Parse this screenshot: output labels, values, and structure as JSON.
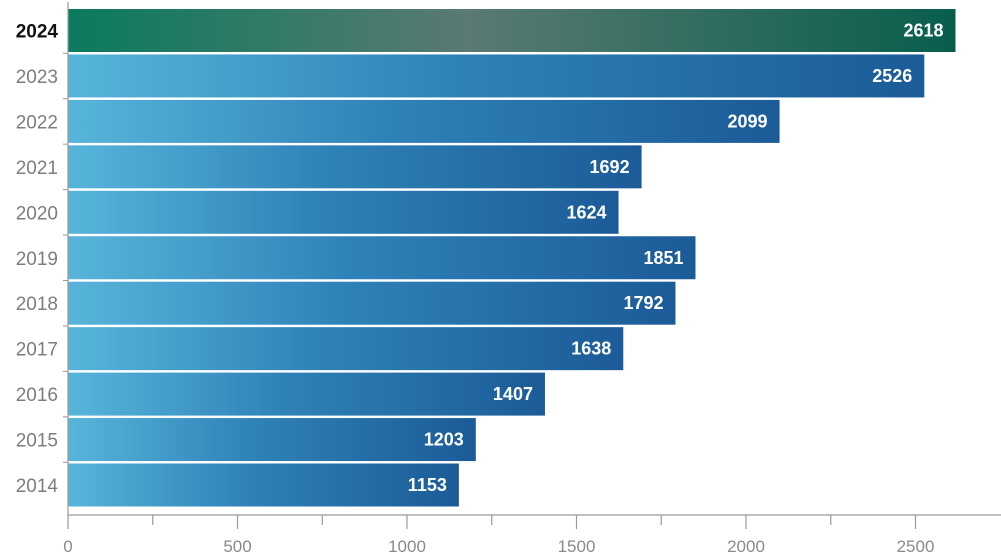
{
  "chart_data": {
    "type": "bar",
    "orientation": "horizontal",
    "categories": [
      "2024",
      "2023",
      "2022",
      "2021",
      "2020",
      "2019",
      "2018",
      "2017",
      "2016",
      "2015",
      "2014"
    ],
    "values": [
      2618,
      2526,
      2099,
      1692,
      1624,
      1851,
      1792,
      1638,
      1407,
      1203,
      1153
    ],
    "highlight_category": "2024",
    "xlim": [
      0,
      2750
    ],
    "x_ticks": [
      0,
      500,
      1000,
      1500,
      2000,
      2500
    ],
    "x_tick_labels": [
      "0",
      "500",
      "1000",
      "1500",
      "2000",
      "2500"
    ],
    "minor_tick_step": 250,
    "grid": false,
    "title": "",
    "xlabel": "",
    "ylabel": "",
    "colors": {
      "bar_gradient_start": "#57b5da",
      "bar_gradient_mid": "#2f82b8",
      "bar_gradient_end": "#1b5b98",
      "highlight_gradient_start": "#0a7a5e",
      "highlight_gradient_mid": "#5a7a72",
      "highlight_gradient_end": "#085e4d",
      "axis": "#9a9a9a",
      "value_text": "#ffffff"
    }
  }
}
